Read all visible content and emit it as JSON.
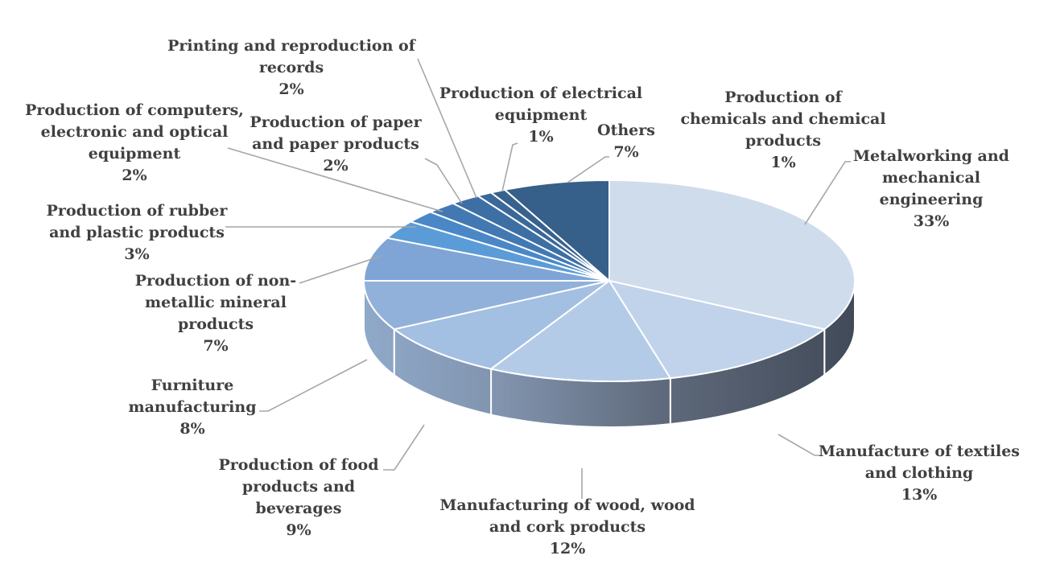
{
  "chart_data": {
    "type": "pie",
    "style": "3d",
    "legend": "none",
    "unit": "%",
    "slices": [
      {
        "label": "Metalworking and mechanical engineering",
        "value": 33,
        "value_label": "33%",
        "lines": [
          "Metalworking and",
          "mechanical",
          "engineering"
        ],
        "color": "#cfdcec"
      },
      {
        "label": "Manufacture of textiles and clothing",
        "value": 13,
        "value_label": "13%",
        "lines": [
          "Manufacture of textiles",
          "and clothing"
        ],
        "color": "#c0d3ea"
      },
      {
        "label": "Manufacturing of wood, wood and cork products",
        "value": 12,
        "value_label": "12%",
        "lines": [
          "Manufacturing of wood, wood",
          "and cork products"
        ],
        "color": "#b4cbe8"
      },
      {
        "label": "Production of food products and beverages",
        "value": 9,
        "value_label": "9%",
        "lines": [
          "Production of food",
          "products and",
          "beverages"
        ],
        "color": "#a3bfe2"
      },
      {
        "label": "Furniture manufacturing",
        "value": 8,
        "value_label": "8%",
        "lines": [
          "Furniture",
          "manufacturing"
        ],
        "color": "#91b1da"
      },
      {
        "label": "Production of non-metallic mineral products",
        "value": 7,
        "value_label": "7%",
        "lines": [
          "Production of non-",
          "metallic mineral",
          "products"
        ],
        "color": "#7ea5d6"
      },
      {
        "label": "Production of rubber and plastic products",
        "value": 3,
        "value_label": "3%",
        "lines": [
          "Production of rubber",
          "and plastic products"
        ],
        "color": "#5b9bd8"
      },
      {
        "label": "Production of computers, electronic and optical equipment",
        "value": 2,
        "value_label": "2%",
        "lines": [
          "Production of computers,",
          "electronic and optical",
          "equipment"
        ],
        "color": "#4a87c6"
      },
      {
        "label": "Production of paper and paper products",
        "value": 2,
        "value_label": "2%",
        "lines": [
          "Production of paper",
          "and paper products"
        ],
        "color": "#4279b3"
      },
      {
        "label": "Printing and reproduction of records",
        "value": 2,
        "value_label": "2%",
        "lines": [
          "Printing and reproduction of",
          "records"
        ],
        "color": "#3d6fa4"
      },
      {
        "label": "Production of electrical equipment",
        "value": 1,
        "value_label": "1%",
        "lines": [
          "Production of electrical",
          "equipment"
        ],
        "color": "#3a6898"
      },
      {
        "label": "Production of chemicals and chemical products",
        "value": 1,
        "value_label": "1%",
        "lines": [
          "Production of",
          "chemicals and chemical",
          "products"
        ],
        "color": "#37628e"
      },
      {
        "label": "Others",
        "value": 7,
        "value_label": "7%",
        "lines": [
          "Others"
        ],
        "color": "#365f89"
      }
    ]
  }
}
